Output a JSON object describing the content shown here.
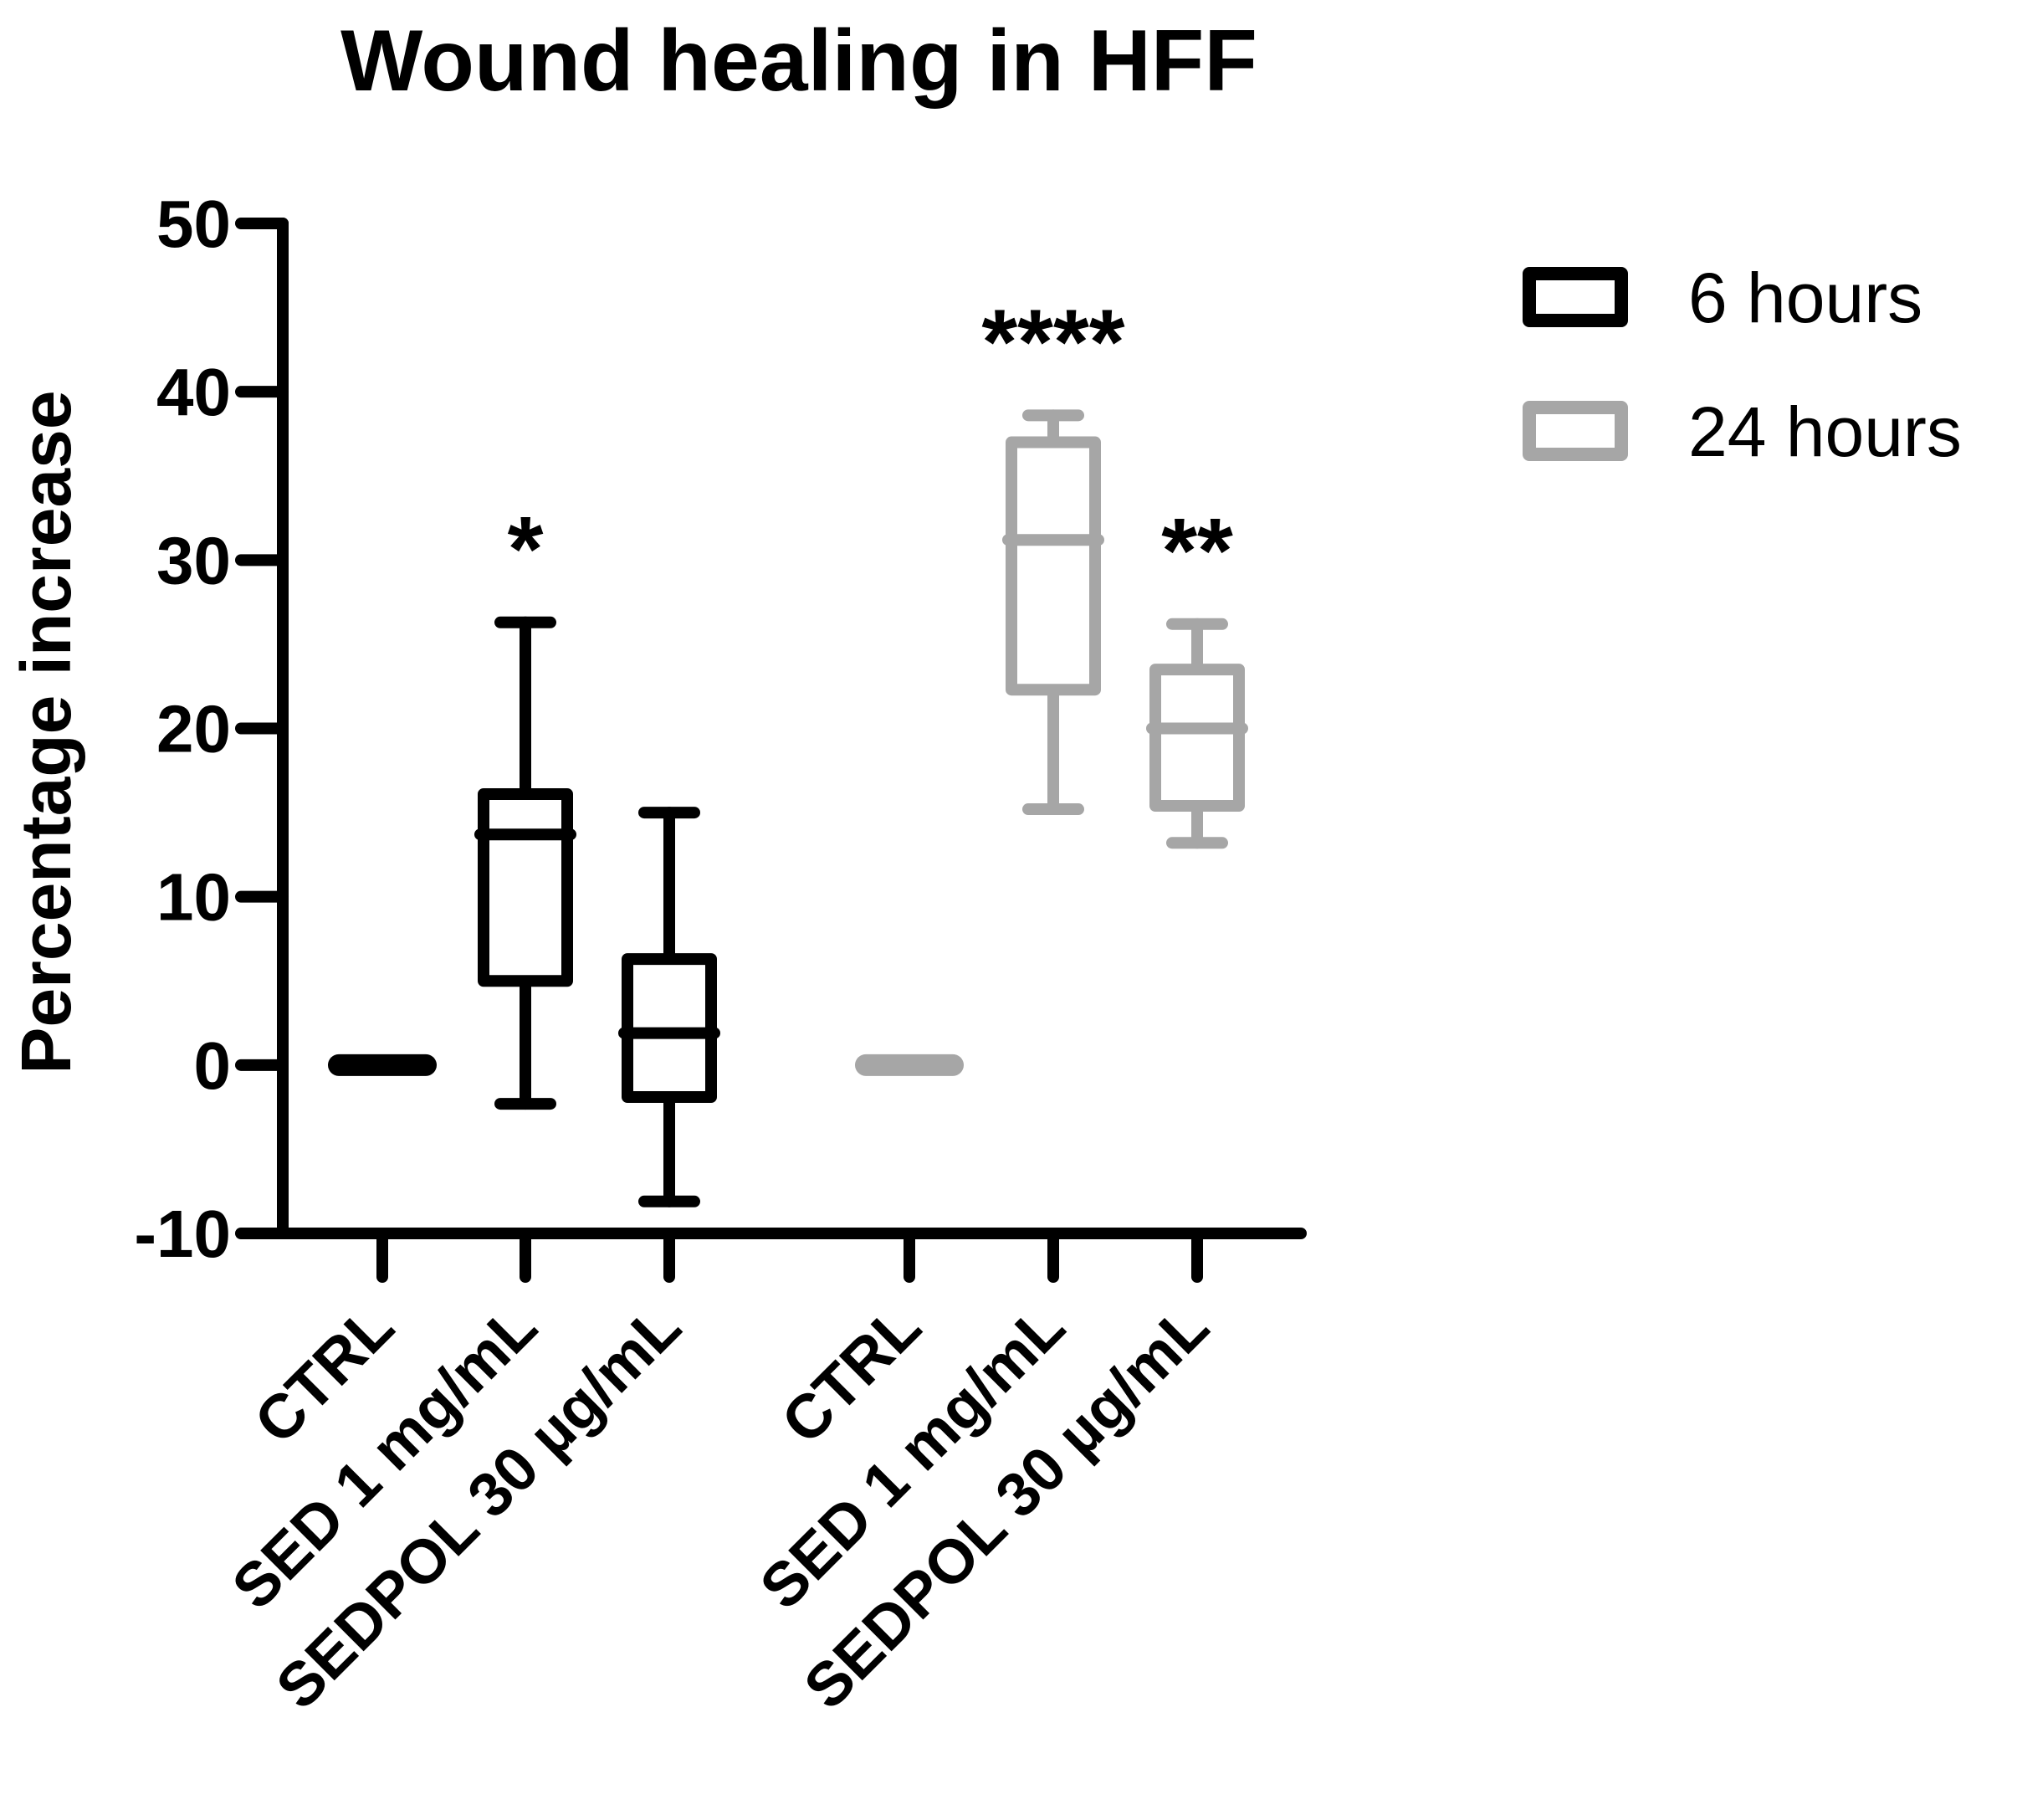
{
  "chart_data": {
    "type": "box",
    "title": "Wound healing in HFF",
    "xlabel": "",
    "ylabel": "Percentage increase",
    "ylim": [
      -10,
      50
    ],
    "yticks": [
      50,
      40,
      30,
      20,
      10,
      0,
      -10
    ],
    "categories": [
      "CTRL",
      "SED 1 mg/mL",
      "SEDPOL 30 µg/mL",
      "CTRL",
      "SED 1 mg/mL",
      "SEDPOL 30 µg/mL"
    ],
    "legend_position": "top-right",
    "series": [
      {
        "name": "6 hours",
        "color": "#000000",
        "boxes": [
          {
            "category": "CTRL",
            "min": 0,
            "q1": 0,
            "median": 0,
            "q3": 0,
            "max": 0,
            "significance": ""
          },
          {
            "category": "SED 1 mg/mL",
            "min": -2.3,
            "q1": 5.0,
            "median": 13.7,
            "q3": 16.1,
            "max": 26.3,
            "significance": "*"
          },
          {
            "category": "SEDPOL 30 µg/mL",
            "min": -8.1,
            "q1": -1.9,
            "median": 1.9,
            "q3": 6.3,
            "max": 15.0,
            "significance": ""
          }
        ]
      },
      {
        "name": "24 hours",
        "color": "#a6a6a6",
        "boxes": [
          {
            "category": "CTRL",
            "min": 0,
            "q1": 0,
            "median": 0,
            "q3": 0,
            "max": 0,
            "significance": ""
          },
          {
            "category": "SED 1 mg/mL",
            "min": 15.2,
            "q1": 22.3,
            "median": 31.2,
            "q3": 37.0,
            "max": 38.6,
            "significance": "****"
          },
          {
            "category": "SEDPOL 30 µg/mL",
            "min": 13.2,
            "q1": 15.4,
            "median": 20.0,
            "q3": 23.5,
            "max": 26.2,
            "significance": "**"
          }
        ]
      }
    ]
  }
}
